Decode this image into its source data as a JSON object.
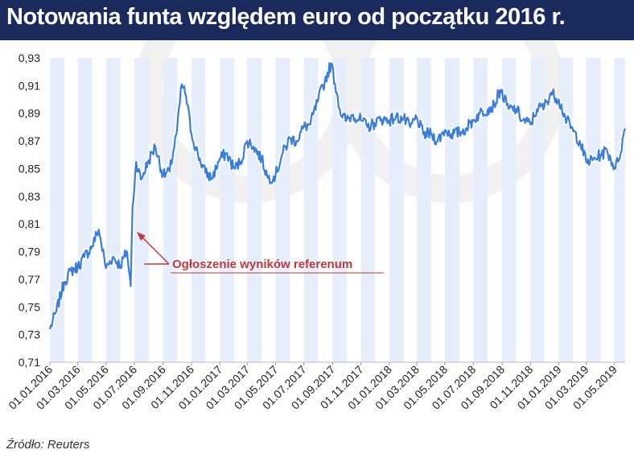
{
  "title": "Notowania funta względem euro od początku 2016 r.",
  "source": "Źródło: Reuters",
  "colors": {
    "header_bg": "#1a2a5c",
    "line": "#3a7de0",
    "band": "#e6eefb",
    "annotation": "#c0393b"
  },
  "chart_data": {
    "type": "line",
    "title": "Notowania funta względem euro od początku 2016 r.",
    "xlabel": "",
    "ylabel": "",
    "ylim": [
      0.71,
      0.93
    ],
    "yticks": [
      0.93,
      0.91,
      0.89,
      0.87,
      0.85,
      0.83,
      0.81,
      0.79,
      0.77,
      0.75,
      0.73,
      0.71
    ],
    "ytick_labels": [
      "0,93",
      "0,91",
      "0,89",
      "0,87",
      "0,85",
      "0,83",
      "0,81",
      "0,79",
      "0,77",
      "0,75",
      "0,73",
      "0,71"
    ],
    "xlim": [
      "2016-01-01",
      "2019-05-24"
    ],
    "xticks": [
      "2016-01-01",
      "2016-03-01",
      "2016-05-01",
      "2016-07-01",
      "2016-09-01",
      "2016-11-01",
      "2017-01-01",
      "2017-03-01",
      "2017-05-01",
      "2017-07-01",
      "2017-09-01",
      "2017-11-01",
      "2018-01-01",
      "2018-03-01",
      "2018-05-01",
      "2018-07-01",
      "2018-09-01",
      "2018-11-01",
      "2019-01-01",
      "2019-03-01",
      "2019-05-01"
    ],
    "xtick_labels": [
      "01.01.2016",
      "01.03.2016",
      "01.05.2016",
      "01.07.2016",
      "01.09.2016",
      "01.11.2016",
      "01.01.2017",
      "01.03.2017",
      "01.05.2017",
      "01.07.2017",
      "01.09.2017",
      "01.11.2017",
      "01.01.2018",
      "01.03.2018",
      "01.05.2018",
      "01.07.2018",
      "01.09.2018",
      "01.11.2018",
      "01.01.2019",
      "01.03.2019",
      "01.05.2019"
    ],
    "grid": "alternating monthly vertical bands",
    "series": [
      {
        "name": "",
        "x": [
          "2016-01-01",
          "2016-01-15",
          "2016-02-01",
          "2016-02-15",
          "2016-03-01",
          "2016-03-15",
          "2016-04-01",
          "2016-04-15",
          "2016-05-01",
          "2016-05-15",
          "2016-06-01",
          "2016-06-15",
          "2016-06-23",
          "2016-06-27",
          "2016-07-05",
          "2016-07-15",
          "2016-08-01",
          "2016-08-15",
          "2016-09-01",
          "2016-09-15",
          "2016-10-01",
          "2016-10-11",
          "2016-10-20",
          "2016-11-01",
          "2016-11-15",
          "2016-12-01",
          "2016-12-15",
          "2017-01-01",
          "2017-01-15",
          "2017-02-01",
          "2017-02-15",
          "2017-03-01",
          "2017-03-15",
          "2017-04-01",
          "2017-04-15",
          "2017-05-01",
          "2017-05-15",
          "2017-06-01",
          "2017-06-15",
          "2017-07-01",
          "2017-07-15",
          "2017-08-01",
          "2017-08-15",
          "2017-08-29",
          "2017-09-10",
          "2017-09-20",
          "2017-10-01",
          "2017-10-15",
          "2017-11-01",
          "2017-11-15",
          "2017-12-01",
          "2017-12-15",
          "2018-01-01",
          "2018-01-15",
          "2018-02-01",
          "2018-02-15",
          "2018-03-01",
          "2018-03-15",
          "2018-04-01",
          "2018-04-15",
          "2018-05-01",
          "2018-05-15",
          "2018-06-01",
          "2018-06-15",
          "2018-07-01",
          "2018-07-15",
          "2018-08-01",
          "2018-08-15",
          "2018-08-28",
          "2018-09-15",
          "2018-10-01",
          "2018-10-15",
          "2018-11-01",
          "2018-11-15",
          "2018-12-01",
          "2018-12-15",
          "2019-01-01",
          "2019-01-15",
          "2019-02-01",
          "2019-02-15",
          "2019-03-01",
          "2019-03-15",
          "2019-04-01",
          "2019-04-15",
          "2019-05-01",
          "2019-05-09",
          "2019-05-24"
        ],
        "values": [
          0.734,
          0.747,
          0.768,
          0.776,
          0.779,
          0.786,
          0.794,
          0.806,
          0.778,
          0.786,
          0.78,
          0.79,
          0.765,
          0.822,
          0.855,
          0.842,
          0.856,
          0.866,
          0.845,
          0.848,
          0.878,
          0.911,
          0.903,
          0.875,
          0.86,
          0.847,
          0.843,
          0.857,
          0.861,
          0.85,
          0.855,
          0.87,
          0.866,
          0.857,
          0.843,
          0.845,
          0.86,
          0.872,
          0.87,
          0.88,
          0.882,
          0.9,
          0.913,
          0.926,
          0.905,
          0.888,
          0.885,
          0.889,
          0.885,
          0.88,
          0.883,
          0.886,
          0.885,
          0.887,
          0.886,
          0.88,
          0.887,
          0.875,
          0.875,
          0.87,
          0.878,
          0.875,
          0.876,
          0.879,
          0.885,
          0.89,
          0.893,
          0.896,
          0.907,
          0.893,
          0.893,
          0.885,
          0.882,
          0.893,
          0.895,
          0.905,
          0.9,
          0.887,
          0.877,
          0.87,
          0.855,
          0.856,
          0.86,
          0.863,
          0.851,
          0.855,
          0.879
        ]
      }
    ],
    "annotations": [
      {
        "text": "Ogłoszenie wyników referenum",
        "x": "2016-06-24"
      }
    ]
  }
}
